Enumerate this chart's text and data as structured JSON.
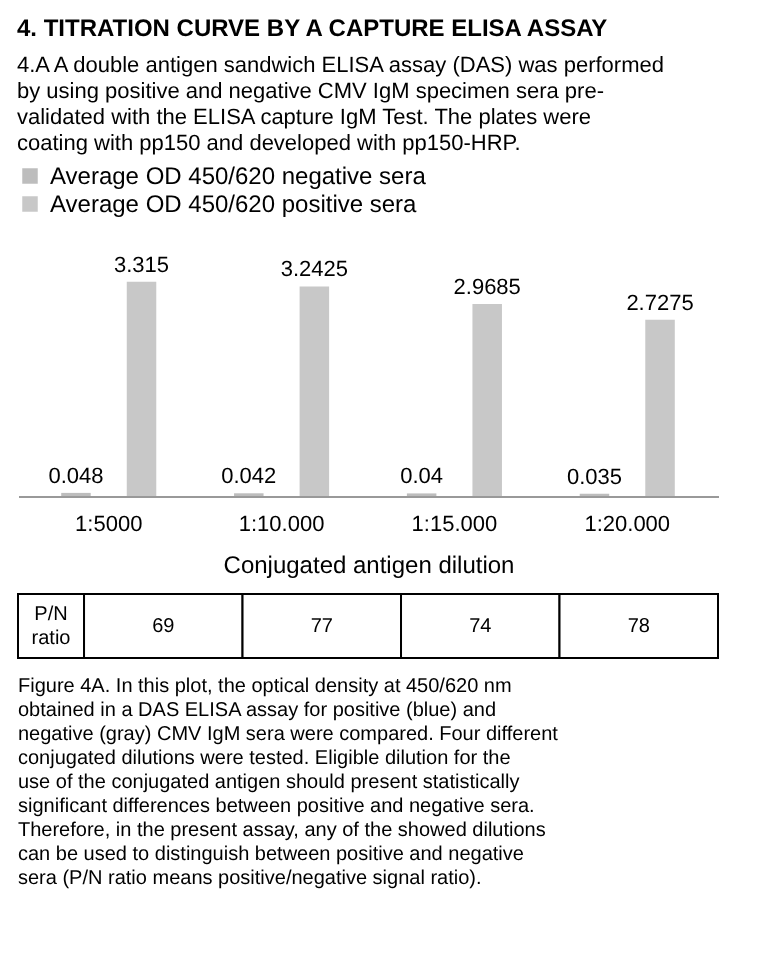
{
  "chart_data": {
    "type": "bar",
    "title": "4.  TITRATION CURVE BY A CAPTURE ELISA ASSAY",
    "subtitle": "4.A A double antigen sandwich ELISA assay (DAS) was performed by using positive and negative CMV IgM specimen sera pre-validated with the ELISA capture IgM Test. The plates were coating with pp150 and developed with pp150-HRP.",
    "categories": [
      "1:5000",
      "1:10.000",
      "1:15.000",
      "1:20.000"
    ],
    "series": [
      {
        "name": "Average OD 450/620 negative sera",
        "color": "#bdbdbd",
        "values": [
          0.048,
          0.042,
          0.04,
          0.035
        ]
      },
      {
        "name": "Average OD 450/620 positive sera",
        "color": "#c8c8c8",
        "values": [
          3.315,
          3.2425,
          2.9685,
          2.7275
        ]
      }
    ],
    "xlabel": "Conjugated antigen dilution",
    "legend": "top",
    "data_labels": true,
    "annotations": [
      "P/N ratio",
      "69",
      "77",
      "74",
      "78",
      "Figure 4A. In this plot, the optical density at 450/620 nm obtained in a DAS ELISA assay for positive (blue) and negative (gray) CMV IgM sera were compared. Four different conjugated dilutions were tested. Eligible dilution for the use of the conjugated antigen should present statistically significant differences between positive and negative sera. Therefore, in the present assay, any of the showed dilutions can be used to distinguish between positive and negative sera (P/N ratio means positive/negative signal ratio)."
    ]
  }
}
